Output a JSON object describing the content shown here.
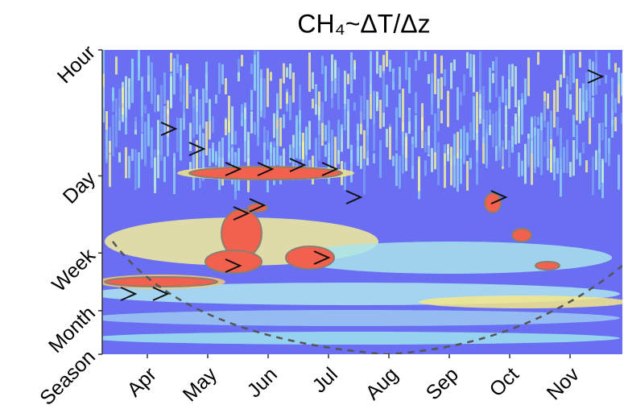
{
  "chart_data": {
    "type": "wavelet",
    "title": "CH₄~ΔT/Δz",
    "categories": [
      "Apr",
      "May",
      "Jun",
      "Jul",
      "Aug",
      "Sep",
      "Oct",
      "Nov"
    ],
    "ylog": true,
    "yinvert": true,
    "ylim": [
      0.0417,
      90
    ],
    "yticks": [
      {
        "value": 0.0417,
        "label": "Hour"
      },
      {
        "value": 1,
        "label": "Day"
      },
      {
        "value": 7,
        "label": "Week"
      },
      {
        "value": 30,
        "label": "Month"
      },
      {
        "value": 90,
        "label": "Season"
      }
    ]
  }
}
